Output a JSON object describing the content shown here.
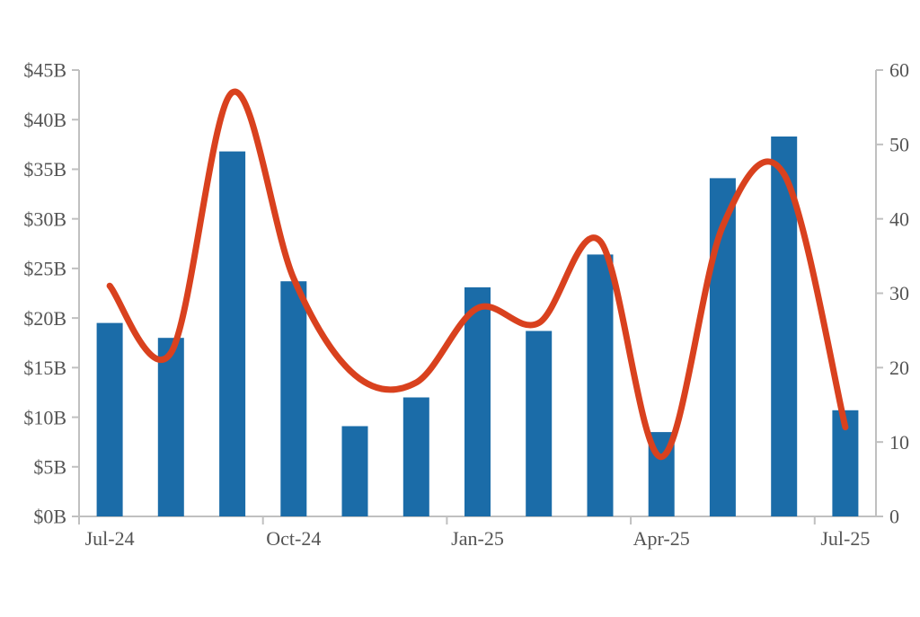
{
  "chart_data": {
    "type": "combo",
    "title": "",
    "legend": "none",
    "grid": false,
    "categories": [
      "Jul-24",
      "Aug-24",
      "Sep-24",
      "Oct-24",
      "Nov-24",
      "Dec-24",
      "Jan-25",
      "Feb-25",
      "Mar-25",
      "Apr-25",
      "May-25",
      "Jun-25",
      "Jul-25"
    ],
    "series": [
      {
        "name": "left-axis-bars",
        "type": "bar",
        "axis": "left",
        "values": [
          19.5,
          18.0,
          36.8,
          23.7,
          9.1,
          12.0,
          23.1,
          18.7,
          26.4,
          8.5,
          34.1,
          38.3,
          10.7
        ]
      },
      {
        "name": "right-axis-smooth-line",
        "type": "line",
        "axis": "right",
        "values": [
          31,
          22,
          57,
          32,
          19,
          18,
          28,
          26,
          37,
          8,
          39,
          46,
          12
        ]
      }
    ],
    "left_axis": {
      "min": 0,
      "max": 45,
      "tick_labels": [
        "$0B",
        "$5B",
        "$10B",
        "$15B",
        "$20B",
        "$25B",
        "$30B",
        "$35B",
        "$40B",
        "$45B"
      ]
    },
    "right_axis": {
      "min": 0,
      "max": 60,
      "tick_labels": [
        "0",
        "10",
        "20",
        "30",
        "40",
        "50",
        "60"
      ]
    },
    "x_axis": {
      "labels": [
        {
          "text": "Jul-24",
          "index": 0
        },
        {
          "text": "Oct-24",
          "index": 3
        },
        {
          "text": "Jan-25",
          "index": 6
        },
        {
          "text": "Apr-25",
          "index": 9
        },
        {
          "text": "Jul-25",
          "index": 12
        }
      ]
    },
    "colors": {
      "bar": "#1b6ca8",
      "line": "#d9411e",
      "axis": "#c0c0c0",
      "text": "#545454"
    }
  }
}
